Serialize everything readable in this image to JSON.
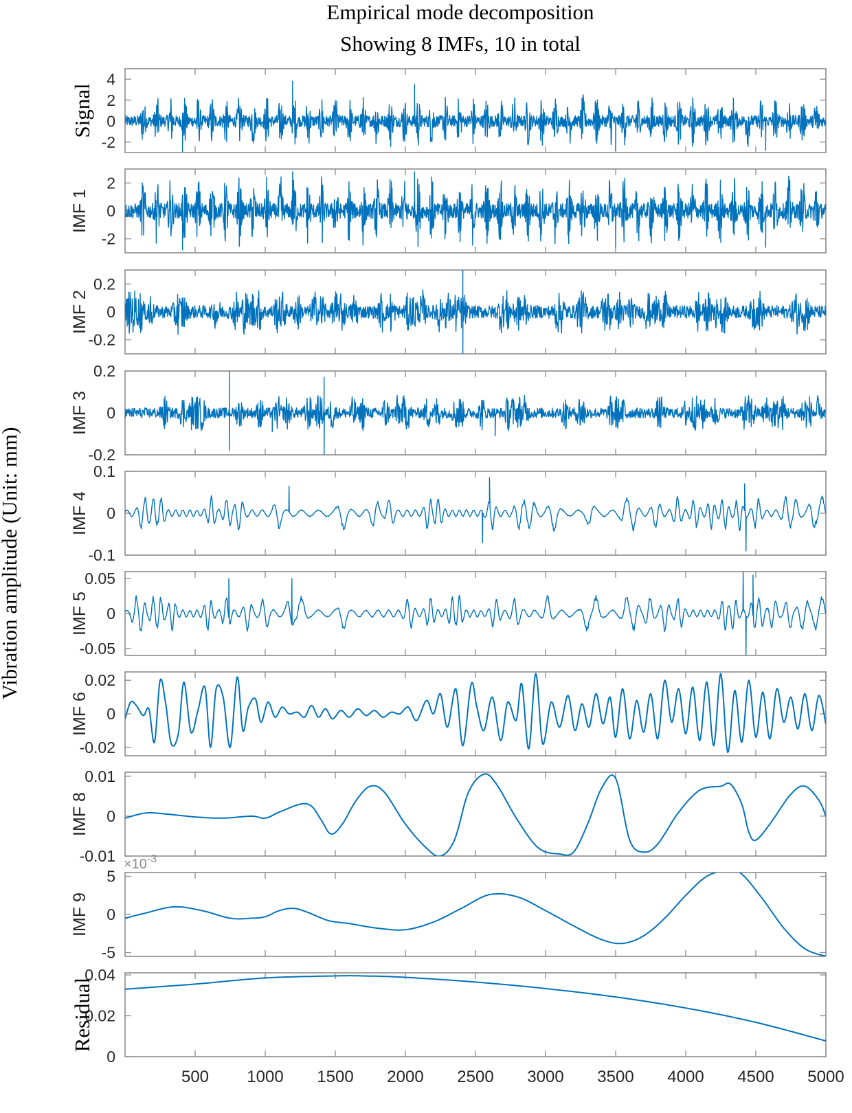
{
  "figure": {
    "title_line1": "Empirical mode decomposition",
    "title_line2": "Showing 8 IMFs,  10 in total",
    "common_ylabel": "Vibration amplitude (Unit: mm)",
    "line_color": "#0072BD",
    "axis_color": "#8c8c8c",
    "x_exponent_note": "×10",
    "x_exponent_power": "-3"
  },
  "chart_data": {
    "type": "line",
    "title": "Empirical mode decomposition — Showing 8 IMFs, 10 in total",
    "ylabel": "Vibration amplitude (Unit: mm)",
    "x_range": [
      0,
      5000
    ],
    "x_ticks": [
      "500",
      "1000",
      "1500",
      "2000",
      "2500",
      "3000",
      "3500",
      "4000",
      "4500",
      "5000"
    ],
    "panels": [
      {
        "name": "Signal",
        "label_style": "serif",
        "kind": "bursts",
        "amplitude": 2.4,
        "ylim": [
          -3,
          5
        ],
        "yticks": [
          [
            "4",
            4
          ],
          [
            "2",
            2
          ],
          [
            "0",
            0
          ],
          [
            "-2",
            -2
          ]
        ],
        "burst_peaks": [
          [
            410,
            -2.9
          ],
          [
            1195,
            3.8
          ],
          [
            2065,
            3.5
          ],
          [
            3500,
            -2.8
          ],
          [
            4570,
            -2.8
          ]
        ],
        "burst_period": 98,
        "burst_start": 130
      },
      {
        "name": "IMF 1",
        "label_style": "sans",
        "kind": "bursts",
        "amplitude": 2.4,
        "ylim": [
          -3,
          3
        ],
        "yticks": [
          [
            "2",
            2
          ],
          [
            "0",
            0
          ],
          [
            "-2",
            -2
          ]
        ],
        "burst_peaks": [
          [
            410,
            -2.8
          ],
          [
            1195,
            2.8
          ],
          [
            2065,
            2.8
          ],
          [
            3500,
            -2.6
          ],
          [
            4570,
            -2.6
          ]
        ],
        "burst_period": 98,
        "burst_start": 130
      },
      {
        "name": "IMF 2",
        "label_style": "sans",
        "kind": "noise",
        "amplitude": 0.13,
        "ylim": [
          -0.3,
          0.3
        ],
        "yticks": [
          [
            "0.2",
            0.2
          ],
          [
            "0",
            0
          ],
          [
            "-0.2",
            -0.2
          ]
        ],
        "spikes": [
          [
            2410,
            0.3
          ],
          [
            2410,
            -0.3
          ]
        ]
      },
      {
        "name": "IMF 3",
        "label_style": "sans",
        "kind": "noise",
        "amplitude": 0.07,
        "ylim": [
          -0.2,
          0.2
        ],
        "yticks": [
          [
            "0.2",
            0.2
          ],
          [
            "0",
            0
          ],
          [
            "-0.2",
            -0.2
          ]
        ],
        "spikes": [
          [
            745,
            0.2
          ],
          [
            745,
            -0.18
          ],
          [
            1420,
            0.17
          ],
          [
            1420,
            -0.2
          ],
          [
            1050,
            -0.09
          ],
          [
            2640,
            -0.11
          ]
        ]
      },
      {
        "name": "IMF 4",
        "label_style": "sans",
        "kind": "wavelets",
        "amplitude": 0.035,
        "ylim": [
          -0.1,
          0.1
        ],
        "yticks": [
          [
            "0.1",
            0.1
          ],
          [
            "0",
            0
          ],
          [
            "-0.1",
            -0.1
          ]
        ],
        "spikes": [
          [
            2600,
            0.085
          ],
          [
            2550,
            -0.07
          ],
          [
            4420,
            0.07
          ],
          [
            4430,
            -0.09
          ],
          [
            1170,
            0.065
          ]
        ]
      },
      {
        "name": "IMF 5",
        "label_style": "sans",
        "kind": "wavelets",
        "amplitude": 0.022,
        "ylim": [
          -0.06,
          0.06
        ],
        "yticks": [
          [
            "0.05",
            0.05
          ],
          [
            "0",
            0
          ],
          [
            "-0.05",
            -0.05
          ]
        ],
        "spikes": [
          [
            740,
            0.05
          ],
          [
            1190,
            0.05
          ],
          [
            4410,
            0.06
          ],
          [
            4430,
            -0.06
          ],
          [
            4480,
            0.055
          ]
        ]
      },
      {
        "name": "IMF 6",
        "label_style": "sans",
        "kind": "points",
        "ylim": [
          -0.025,
          0.025
        ],
        "yticks": [
          [
            "0.02",
            0.02
          ],
          [
            "0",
            0
          ],
          [
            "-0.02",
            -0.02
          ]
        ],
        "x": [
          0,
          40,
          80,
          130,
          170,
          210,
          250,
          290,
          330,
          380,
          420,
          470,
          520,
          570,
          610,
          650,
          700,
          750,
          800,
          840,
          880,
          930,
          970,
          1020,
          1070,
          1120,
          1170,
          1230,
          1280,
          1330,
          1380,
          1430,
          1480,
          1540,
          1600,
          1660,
          1720,
          1780,
          1840,
          1900,
          1960,
          2020,
          2080,
          2150,
          2200,
          2250,
          2300,
          2360,
          2410,
          2470,
          2510,
          2560,
          2620,
          2680,
          2730,
          2790,
          2830,
          2880,
          2930,
          2980,
          3040,
          3100,
          3160,
          3210,
          3260,
          3310,
          3360,
          3410,
          3460,
          3500,
          3550,
          3600,
          3650,
          3700,
          3750,
          3800,
          3850,
          3900,
          3950,
          4000,
          4050,
          4100,
          4150,
          4200,
          4250,
          4300,
          4350,
          4400,
          4450,
          4500,
          4550,
          4600,
          4650,
          4700,
          4750,
          4800,
          4850,
          4900,
          4950,
          5000
        ],
        "y": [
          -0.003,
          0.007,
          0.005,
          -0.001,
          0.003,
          -0.017,
          0.02,
          0.006,
          -0.018,
          -0.012,
          0.019,
          -0.011,
          0.002,
          0.016,
          -0.02,
          0.015,
          0.01,
          -0.02,
          0.022,
          -0.01,
          0.004,
          0.009,
          -0.005,
          0.007,
          -0.002,
          0.004,
          0.0,
          0.001,
          -0.002,
          0.005,
          -0.002,
          0.003,
          -0.003,
          0.002,
          -0.002,
          0.003,
          -0.001,
          0.002,
          -0.002,
          0.001,
          0.0,
          0.004,
          -0.004,
          0.008,
          0.0,
          0.012,
          -0.008,
          0.015,
          -0.019,
          0.018,
          0.004,
          -0.01,
          0.01,
          -0.016,
          0.007,
          -0.004,
          0.018,
          -0.021,
          0.024,
          -0.018,
          0.007,
          -0.008,
          0.011,
          -0.01,
          0.006,
          -0.008,
          0.012,
          -0.006,
          0.01,
          -0.014,
          0.015,
          -0.015,
          0.008,
          -0.011,
          0.012,
          -0.015,
          0.02,
          -0.005,
          0.015,
          -0.012,
          0.016,
          -0.016,
          0.019,
          -0.019,
          0.024,
          -0.023,
          0.014,
          -0.017,
          0.02,
          -0.014,
          0.013,
          -0.015,
          0.015,
          -0.005,
          0.01,
          -0.009,
          0.012,
          -0.01,
          0.011,
          -0.006
        ]
      },
      {
        "name": "IMF 8",
        "label_style": "sans",
        "kind": "points",
        "ylim": [
          -0.01,
          0.011
        ],
        "yticks": [
          [
            "0.01",
            0.01
          ],
          [
            "0",
            0
          ],
          [
            "-0.01",
            -0.01
          ]
        ],
        "x": [
          0,
          150,
          300,
          500,
          700,
          900,
          1000,
          1100,
          1250,
          1330,
          1400,
          1470,
          1550,
          1650,
          1750,
          1850,
          2000,
          2150,
          2250,
          2350,
          2450,
          2560,
          2650,
          2800,
          2950,
          3100,
          3200,
          3300,
          3400,
          3500,
          3600,
          3700,
          3800,
          3950,
          4100,
          4250,
          4320,
          4400,
          4450,
          4500,
          4600,
          4750,
          4850,
          4950,
          5000
        ],
        "y": [
          -0.0005,
          0.0008,
          0.0005,
          -0.0002,
          -0.0005,
          0.0,
          -0.0005,
          0.001,
          0.003,
          0.0025,
          -0.001,
          -0.0045,
          -0.002,
          0.004,
          0.0075,
          0.006,
          -0.002,
          -0.008,
          -0.01,
          -0.006,
          0.006,
          0.0105,
          0.008,
          -0.001,
          -0.008,
          -0.0095,
          -0.009,
          -0.002,
          0.007,
          0.0095,
          -0.006,
          -0.009,
          -0.007,
          0.001,
          0.0065,
          0.0075,
          0.008,
          0.003,
          -0.004,
          -0.006,
          -0.002,
          0.0055,
          0.0075,
          0.004,
          0.0
        ]
      },
      {
        "name": "IMF 9",
        "label_style": "sans",
        "kind": "points",
        "ylim": [
          -5.5,
          5.5
        ],
        "yticks": [
          [
            "5",
            5
          ],
          [
            "0",
            0
          ],
          [
            "-5",
            -5
          ]
        ],
        "exponent": true,
        "x": [
          0,
          150,
          350,
          550,
          750,
          900,
          1000,
          1100,
          1200,
          1300,
          1450,
          1600,
          1800,
          2000,
          2200,
          2400,
          2600,
          2800,
          3000,
          3200,
          3400,
          3550,
          3700,
          3850,
          4000,
          4150,
          4300,
          4400,
          4550,
          4700,
          4850,
          5000
        ],
        "y": [
          -0.5,
          0.2,
          1.0,
          0.5,
          -0.5,
          -0.5,
          -0.3,
          0.5,
          0.8,
          0.3,
          -0.8,
          -1.2,
          -1.8,
          -2.0,
          -1.0,
          0.8,
          2.6,
          2.3,
          0.5,
          -1.5,
          -3.3,
          -3.8,
          -2.8,
          -0.5,
          2.5,
          5.0,
          5.8,
          5.3,
          2.0,
          -1.8,
          -4.5,
          -5.5
        ]
      },
      {
        "name": "Residual",
        "label_style": "serif",
        "kind": "points",
        "ylim": [
          0,
          0.041
        ],
        "yticks": [
          [
            "0.04",
            0.04
          ],
          [
            "0.02",
            0.02
          ],
          [
            "0",
            0
          ]
        ],
        "x": [
          0,
          500,
          1000,
          1500,
          1700,
          2000,
          2500,
          3000,
          3500,
          4000,
          4500,
          5000
        ],
        "y": [
          0.033,
          0.0355,
          0.0385,
          0.0395,
          0.0395,
          0.0388,
          0.0365,
          0.0333,
          0.0292,
          0.0238,
          0.0168,
          0.0077
        ]
      }
    ]
  }
}
